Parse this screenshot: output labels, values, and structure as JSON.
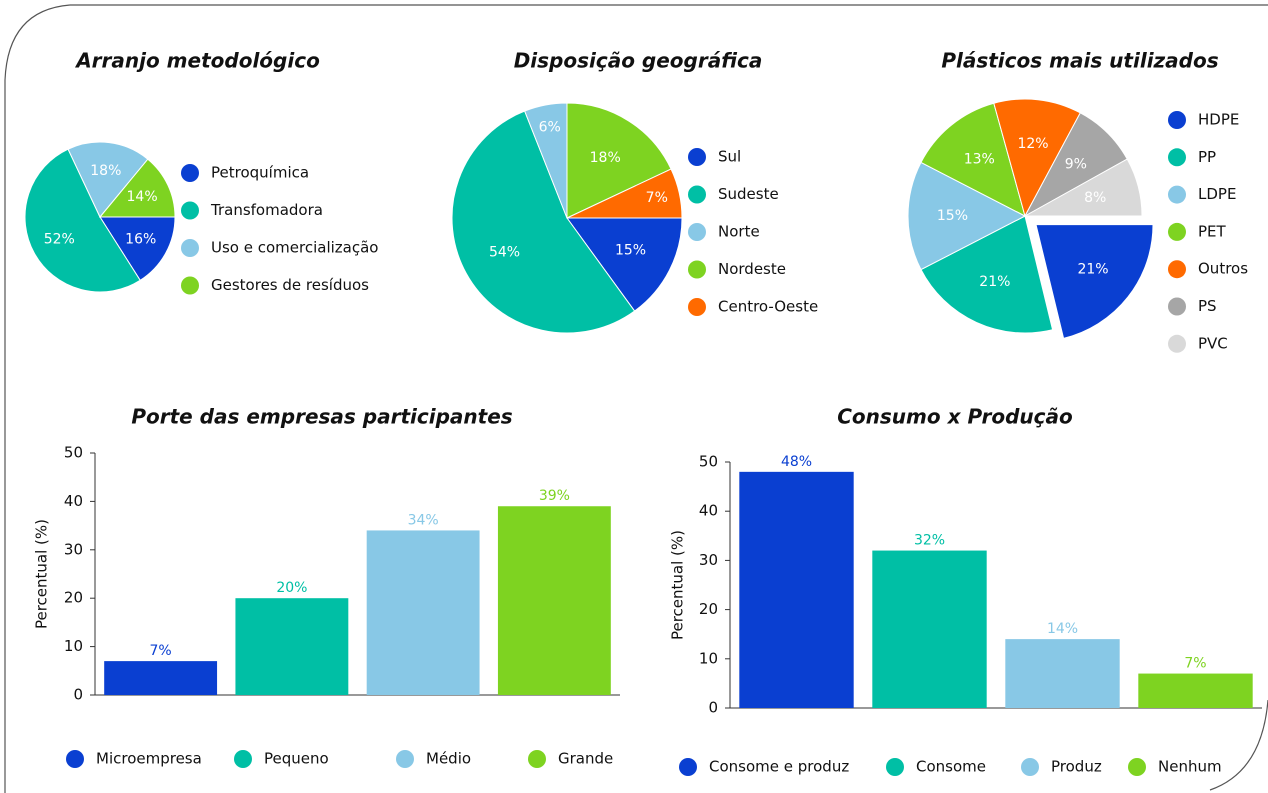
{
  "chart_data": [
    {
      "type": "pie",
      "title": "Arranjo metodológico",
      "categories": [
        "Petroquímica",
        "Transfomadora",
        "Uso e comercialização",
        "Gestores de resíduos"
      ],
      "values": [
        16,
        52,
        18,
        14
      ],
      "value_labels": [
        "16%",
        "52%",
        "18%",
        "14%"
      ],
      "colors": [
        "#0a3fd1",
        "#00bfa5",
        "#88c8e6",
        "#7ed321"
      ],
      "start_angle": 90,
      "legend": "right"
    },
    {
      "type": "pie",
      "title": "Disposição geográfica",
      "categories": [
        "Sul",
        "Sudeste",
        "Norte",
        "Nordeste",
        "Centro-Oeste"
      ],
      "values": [
        15,
        54,
        6,
        18,
        7
      ],
      "value_labels": [
        "15%",
        "54%",
        "6%",
        "18%",
        "7%"
      ],
      "colors": [
        "#0a3fd1",
        "#00bfa5",
        "#88c8e6",
        "#7ed321",
        "#ff6a00"
      ],
      "start_angle": 90,
      "legend": "right"
    },
    {
      "type": "pie",
      "title": "Plásticos mais utilizados",
      "categories": [
        "HDPE",
        "PP",
        "LDPE",
        "PET",
        "Outros",
        "PS",
        "PVC"
      ],
      "values": [
        21,
        21,
        15,
        13,
        12,
        9,
        8
      ],
      "value_labels": [
        "21%",
        "21%",
        "15%",
        "13%",
        "12%",
        "9%",
        "8%"
      ],
      "colors": [
        "#0a3fd1",
        "#00bfa5",
        "#88c8e6",
        "#7ed321",
        "#ff6a00",
        "#a6a6a6",
        "#d9d9d9"
      ],
      "start_angle": 90,
      "legend": "right"
    },
    {
      "type": "bar",
      "title": "Porte das empresas participantes",
      "ylabel": "Percentual (%)",
      "categories": [
        "Microempresa",
        "Pequeno",
        "Médio",
        "Grande"
      ],
      "values": [
        7,
        20,
        34,
        39
      ],
      "value_labels": [
        "7%",
        "20%",
        "34%",
        "39%"
      ],
      "colors": [
        "#0a3fd1",
        "#00bfa5",
        "#88c8e6",
        "#7ed321"
      ],
      "ylim": [
        0,
        50
      ],
      "yticks": [
        0,
        10,
        20,
        30,
        40,
        50
      ],
      "grid": false,
      "legend": "bottom"
    },
    {
      "type": "bar",
      "title": "Consumo x Produção",
      "ylabel": "Percentual (%)",
      "categories": [
        "Consome e produz",
        "Consome",
        "Produz",
        "Nenhum"
      ],
      "values": [
        48,
        32,
        14,
        7
      ],
      "value_labels": [
        "48%",
        "32%",
        "14%",
        "7%"
      ],
      "colors": [
        "#0a3fd1",
        "#00bfa5",
        "#88c8e6",
        "#7ed321"
      ],
      "ylim": [
        0,
        50
      ],
      "yticks": [
        0,
        10,
        20,
        30,
        40,
        50
      ],
      "grid": false,
      "legend": "bottom"
    }
  ]
}
